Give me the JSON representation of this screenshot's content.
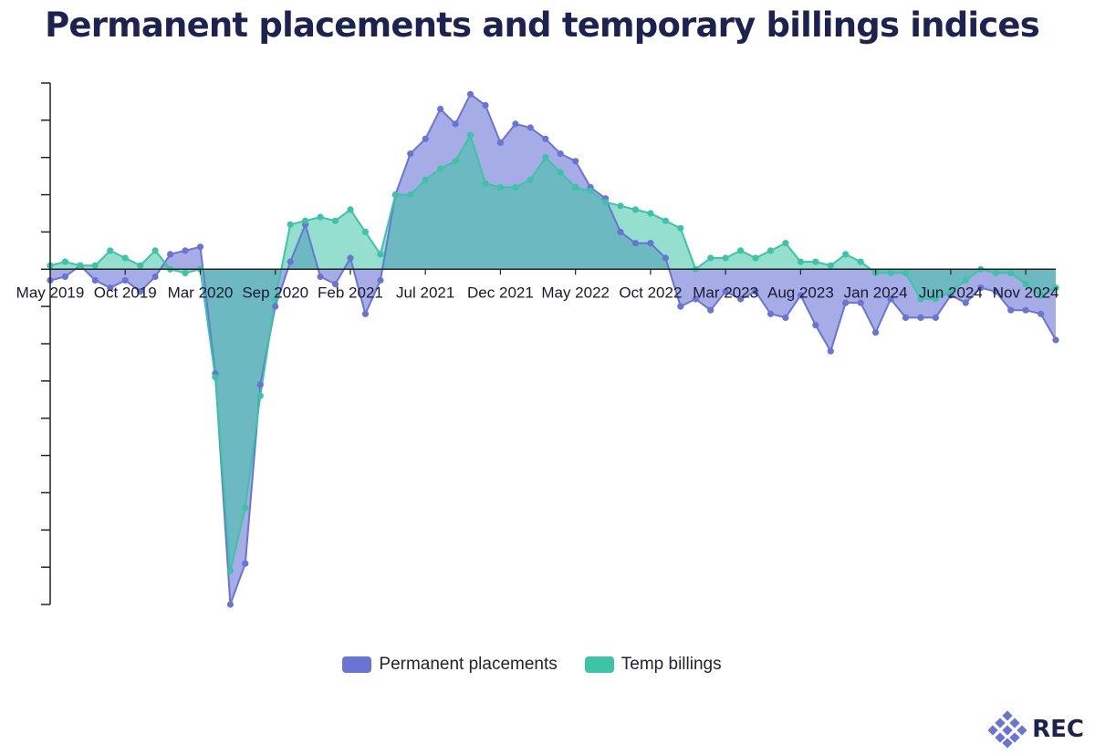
{
  "chart_data": {
    "type": "area",
    "title": "Permanent placements and temporary billings indices",
    "xlabel": "",
    "ylabel": "",
    "x_tick_labels": [
      "May 2019",
      "Oct 2019",
      "Mar 2020",
      "Sep 2020",
      "Feb 2021",
      "Jul 2021",
      "Dec 2021",
      "May 2022",
      "Oct 2022",
      "Mar 2023",
      "Aug 2023",
      "Jan 2024",
      "Jun 2024",
      "Nov 2024"
    ],
    "x_start": "May 2019",
    "x_end": "Nov 2024",
    "ylim": [
      -9,
      5
    ],
    "y_tick_count": 15,
    "grid": false,
    "legend_position": "bottom-center",
    "series": [
      {
        "name": "Permanent placements",
        "color": "#6a74d4",
        "values": [
          -0.3,
          -0.2,
          0.1,
          -0.3,
          -0.5,
          -0.3,
          -0.6,
          -0.2,
          0.4,
          0.5,
          0.6,
          -2.8,
          -9.0,
          -7.9,
          -3.1,
          -1.0,
          0.2,
          1.2,
          -0.2,
          -0.4,
          0.3,
          -1.2,
          -0.3,
          2.0,
          3.1,
          3.5,
          4.3,
          3.9,
          4.7,
          4.4,
          3.4,
          3.9,
          3.8,
          3.5,
          3.1,
          2.9,
          2.2,
          1.9,
          1.0,
          0.7,
          0.7,
          0.3,
          -1.0,
          -0.8,
          -1.1,
          -0.6,
          -0.8,
          -0.6,
          -1.2,
          -1.3,
          -0.7,
          -1.5,
          -2.2,
          -0.9,
          -0.9,
          -1.7,
          -0.8,
          -1.3,
          -1.3,
          -1.3,
          -0.7,
          -0.9,
          -0.5,
          -0.6,
          -1.1,
          -1.1,
          -1.2,
          -1.9
        ]
      },
      {
        "name": "Temp billings",
        "color": "#3cc4a6",
        "values": [
          0.1,
          0.2,
          0.1,
          0.1,
          0.5,
          0.3,
          0.1,
          0.5,
          0.0,
          -0.1,
          0.0,
          -2.9,
          -8.1,
          -6.4,
          -3.4,
          -0.8,
          1.2,
          1.3,
          1.4,
          1.3,
          1.6,
          1.0,
          0.4,
          2.0,
          2.0,
          2.4,
          2.7,
          2.9,
          3.6,
          2.3,
          2.2,
          2.2,
          2.4,
          3.0,
          2.6,
          2.2,
          2.1,
          1.8,
          1.7,
          1.6,
          1.5,
          1.3,
          1.1,
          0.0,
          0.3,
          0.3,
          0.5,
          0.3,
          0.5,
          0.7,
          0.2,
          0.2,
          0.1,
          0.4,
          0.2,
          -0.1,
          -0.1,
          -0.1,
          -0.8,
          -0.8,
          -0.6,
          -0.3,
          0.0,
          -0.1,
          -0.1,
          -0.4,
          -0.7,
          -0.5
        ]
      }
    ]
  },
  "legend": {
    "items": [
      {
        "label": "Permanent placements",
        "color": "#6a74d4"
      },
      {
        "label": "Temp billings",
        "color": "#3cc4a6"
      }
    ]
  },
  "logo": {
    "text": "REC",
    "icon": "rec-logo-icon",
    "color": "#6a74d4"
  }
}
